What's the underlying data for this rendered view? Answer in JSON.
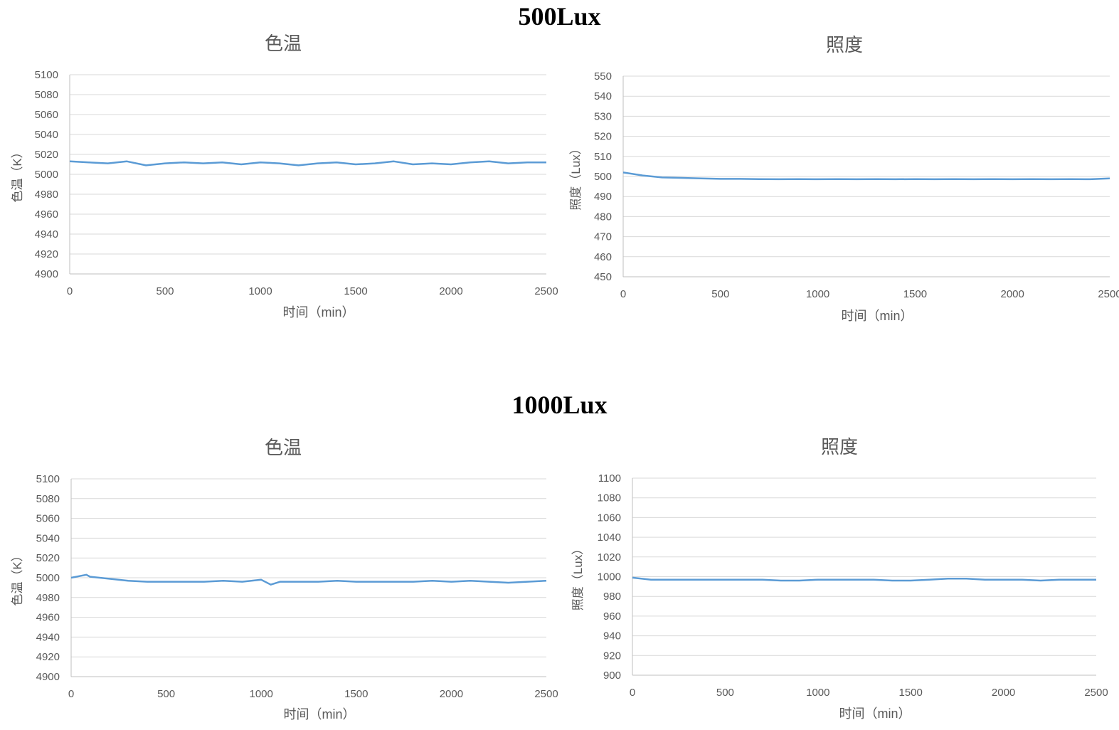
{
  "sections": [
    {
      "title": "500Lux"
    },
    {
      "title": "1000Lux"
    }
  ],
  "colors": {
    "line": "#5B9BD5",
    "grid": "#D9D9D9",
    "axis": "#BFBFBF",
    "text": "#595959"
  },
  "chart_data": [
    {
      "type": "line",
      "title": "色温",
      "xlabel": "时间（min）",
      "ylabel": "色温（K）",
      "xlim": [
        0,
        2500
      ],
      "ylim": [
        4900,
        5100
      ],
      "xticks": [
        "0",
        "500",
        "1000",
        "1500",
        "2000",
        "2500"
      ],
      "yticks": [
        "4900",
        "4920",
        "4940",
        "4960",
        "4980",
        "5000",
        "5020",
        "5040",
        "5060",
        "5080",
        "5100"
      ],
      "grid": true,
      "series": [
        {
          "x": [
            0,
            100,
            200,
            300,
            400,
            500,
            600,
            700,
            800,
            900,
            1000,
            1100,
            1200,
            1300,
            1400,
            1500,
            1600,
            1700,
            1800,
            1900,
            2000,
            2100,
            2200,
            2300,
            2400,
            2500
          ],
          "values": [
            5013,
            5012,
            5011,
            5013,
            5009,
            5011,
            5012,
            5011,
            5012,
            5010,
            5012,
            5011,
            5009,
            5011,
            5012,
            5010,
            5011,
            5013,
            5010,
            5011,
            5010,
            5012,
            5013,
            5011,
            5012,
            5012
          ]
        }
      ]
    },
    {
      "type": "line",
      "title": "照度",
      "xlabel": "时间（min）",
      "ylabel": "照度（Lux）",
      "xlim": [
        0,
        2500
      ],
      "ylim": [
        450,
        550
      ],
      "xticks": [
        "0",
        "500",
        "1000",
        "1500",
        "2000",
        "2500"
      ],
      "yticks": [
        "450",
        "460",
        "470",
        "480",
        "490",
        "500",
        "510",
        "520",
        "530",
        "540",
        "550"
      ],
      "grid": true,
      "series": [
        {
          "x": [
            0,
            100,
            200,
            300,
            400,
            500,
            600,
            700,
            800,
            900,
            1000,
            1100,
            1200,
            1300,
            1400,
            1500,
            1600,
            1700,
            1800,
            1900,
            2000,
            2100,
            2200,
            2300,
            2400,
            2500
          ],
          "values": [
            502,
            500.5,
            499.5,
            499.3,
            499,
            498.8,
            498.8,
            498.7,
            498.6,
            498.7,
            498.6,
            498.7,
            498.6,
            498.7,
            498.6,
            498.7,
            498.6,
            498.7,
            498.6,
            498.7,
            498.6,
            498.7,
            498.6,
            498.7,
            498.6,
            499
          ]
        }
      ]
    },
    {
      "type": "line",
      "title": "色温",
      "xlabel": "时间（min）",
      "ylabel": "色温（K）",
      "xlim": [
        0,
        2500
      ],
      "ylim": [
        4900,
        5100
      ],
      "xticks": [
        "0",
        "500",
        "1000",
        "1500",
        "2000",
        "2500"
      ],
      "yticks": [
        "4900",
        "4920",
        "4940",
        "4960",
        "4980",
        "5000",
        "5020",
        "5040",
        "5060",
        "5080",
        "5100"
      ],
      "grid": true,
      "series": [
        {
          "x": [
            0,
            80,
            100,
            200,
            300,
            400,
            500,
            600,
            700,
            800,
            900,
            1000,
            1050,
            1100,
            1200,
            1300,
            1400,
            1500,
            1600,
            1700,
            1800,
            1900,
            2000,
            2100,
            2200,
            2300,
            2400,
            2500
          ],
          "values": [
            5000,
            5003,
            5001,
            4999,
            4997,
            4996,
            4996,
            4996,
            4996,
            4997,
            4996,
            4998,
            4993,
            4996,
            4996,
            4996,
            4997,
            4996,
            4996,
            4996,
            4996,
            4997,
            4996,
            4997,
            4996,
            4995,
            4996,
            4997
          ]
        }
      ]
    },
    {
      "type": "line",
      "title": "照度",
      "xlabel": "时间（min）",
      "ylabel": "照度（Lux）",
      "xlim": [
        0,
        2500
      ],
      "ylim": [
        900,
        1100
      ],
      "xticks": [
        "0",
        "500",
        "1000",
        "1500",
        "2000",
        "2500"
      ],
      "yticks": [
        "900",
        "920",
        "940",
        "960",
        "980",
        "1000",
        "1020",
        "1040",
        "1060",
        "1080",
        "1100"
      ],
      "grid": true,
      "series": [
        {
          "x": [
            0,
            100,
            200,
            300,
            400,
            500,
            600,
            700,
            800,
            900,
            1000,
            1100,
            1200,
            1300,
            1400,
            1500,
            1600,
            1700,
            1800,
            1900,
            2000,
            2100,
            2200,
            2300,
            2400,
            2500
          ],
          "values": [
            999,
            997,
            997,
            997,
            997,
            997,
            997,
            997,
            996,
            996,
            997,
            997,
            997,
            997,
            996,
            996,
            997,
            998,
            998,
            997,
            997,
            997,
            996,
            997,
            997,
            997
          ]
        }
      ]
    }
  ]
}
